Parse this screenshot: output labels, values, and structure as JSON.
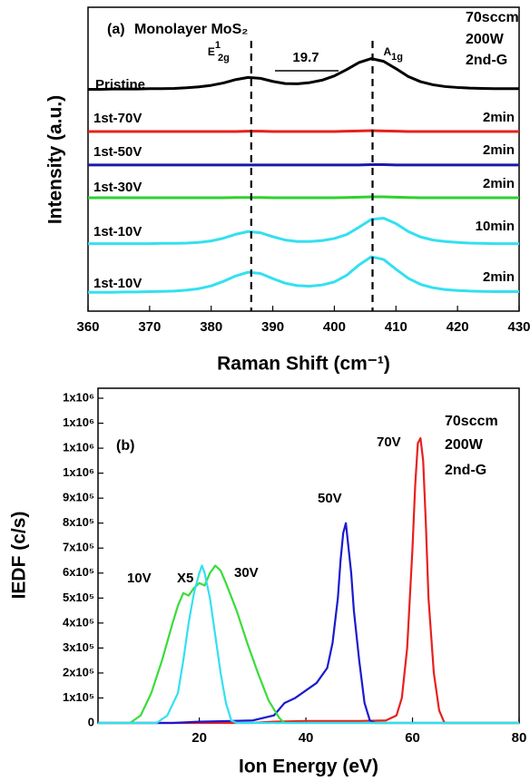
{
  "chart_data": [
    {
      "type": "line",
      "label": "(a)",
      "title": "Monolayer MoS₂",
      "x_label": "Raman Shift (cm⁻¹)",
      "y_label": "Intensity (a.u.)",
      "conditions": [
        "70sccm",
        "200W",
        "2nd-G"
      ],
      "peaks": [
        {
          "base": "E",
          "sup": "1",
          "sub": "2g",
          "x": 386.5
        },
        {
          "base": "A",
          "sub": "1g",
          "x": 406.2
        }
      ],
      "splitting": "19.7",
      "xlim": [
        360,
        430
      ],
      "xticks": [
        360,
        370,
        380,
        390,
        400,
        410,
        420,
        430
      ],
      "ylim": [
        0,
        10
      ],
      "x": [
        360,
        362,
        364,
        366,
        368,
        370,
        372,
        374,
        376,
        378,
        380,
        382,
        384,
        386,
        388,
        390,
        392,
        394,
        396,
        398,
        400,
        402,
        404,
        406,
        408,
        410,
        412,
        414,
        416,
        418,
        420,
        422,
        424,
        426,
        428,
        430
      ],
      "series": [
        {
          "name": "Pristine",
          "color": "#000000",
          "values": [
            7.3,
            7.3,
            7.31,
            7.31,
            7.31,
            7.32,
            7.32,
            7.33,
            7.35,
            7.38,
            7.43,
            7.51,
            7.62,
            7.69,
            7.66,
            7.56,
            7.49,
            7.48,
            7.52,
            7.6,
            7.74,
            7.95,
            8.18,
            8.31,
            8.22,
            7.98,
            7.72,
            7.55,
            7.45,
            7.39,
            7.36,
            7.34,
            7.33,
            7.32,
            7.32,
            7.32
          ]
        },
        {
          "name": "1st-70V",
          "color": "#e8201c",
          "duration": "2min",
          "values": [
            5.91,
            5.91,
            5.91,
            5.91,
            5.91,
            5.91,
            5.91,
            5.91,
            5.91,
            5.91,
            5.91,
            5.91,
            5.91,
            5.92,
            5.92,
            5.91,
            5.91,
            5.91,
            5.91,
            5.91,
            5.91,
            5.92,
            5.93,
            5.94,
            5.93,
            5.92,
            5.91,
            5.91,
            5.91,
            5.91,
            5.91,
            5.91,
            5.91,
            5.91,
            5.91,
            5.91
          ]
        },
        {
          "name": "1st-50V",
          "color": "#1a1aa8",
          "duration": "2min",
          "values": [
            4.81,
            4.81,
            4.81,
            4.81,
            4.81,
            4.81,
            4.81,
            4.81,
            4.81,
            4.81,
            4.81,
            4.81,
            4.81,
            4.81,
            4.81,
            4.81,
            4.81,
            4.81,
            4.81,
            4.81,
            4.81,
            4.81,
            4.81,
            4.82,
            4.82,
            4.81,
            4.81,
            4.81,
            4.81,
            4.81,
            4.81,
            4.81,
            4.81,
            4.81,
            4.81,
            4.81
          ]
        },
        {
          "name": "1st-30V",
          "color": "#2ed12e",
          "duration": "2min",
          "values": [
            3.73,
            3.73,
            3.73,
            3.73,
            3.73,
            3.73,
            3.73,
            3.73,
            3.73,
            3.73,
            3.73,
            3.73,
            3.74,
            3.74,
            3.74,
            3.73,
            3.73,
            3.73,
            3.73,
            3.73,
            3.73,
            3.74,
            3.75,
            3.76,
            3.76,
            3.75,
            3.74,
            3.73,
            3.73,
            3.73,
            3.73,
            3.73,
            3.73,
            3.73,
            3.73,
            3.73
          ]
        },
        {
          "name": "1st-10V",
          "color": "#33e0f0",
          "duration": "10min",
          "values": [
            2.22,
            2.22,
            2.22,
            2.22,
            2.22,
            2.22,
            2.23,
            2.23,
            2.24,
            2.26,
            2.31,
            2.4,
            2.53,
            2.62,
            2.58,
            2.45,
            2.34,
            2.29,
            2.29,
            2.32,
            2.39,
            2.52,
            2.76,
            3.02,
            3.06,
            2.88,
            2.62,
            2.44,
            2.34,
            2.29,
            2.26,
            2.24,
            2.23,
            2.22,
            2.22,
            2.22
          ]
        },
        {
          "name": "1st-10V",
          "color": "#33e0f0",
          "duration": "2min",
          "values": [
            0.62,
            0.62,
            0.62,
            0.63,
            0.63,
            0.64,
            0.65,
            0.66,
            0.69,
            0.74,
            0.83,
            0.98,
            1.16,
            1.28,
            1.24,
            1.07,
            0.92,
            0.84,
            0.82,
            0.86,
            0.96,
            1.18,
            1.52,
            1.79,
            1.7,
            1.38,
            1.08,
            0.88,
            0.77,
            0.71,
            0.68,
            0.66,
            0.65,
            0.64,
            0.64,
            0.64
          ]
        }
      ]
    },
    {
      "type": "line",
      "label": "(b)",
      "x_label": "Ion Energy (eV)",
      "y_label": "IEDF (c/s)",
      "conditions": [
        "70sccm",
        "200W",
        "2nd-G"
      ],
      "xlim": [
        1,
        80
      ],
      "xticks": [
        20,
        40,
        60,
        80
      ],
      "ylim": [
        0,
        1340000
      ],
      "yticks": [
        0,
        {
          "value": 100000,
          "label": "1x10⁵"
        },
        {
          "value": 200000,
          "label": "2x10⁵"
        },
        {
          "value": 300000,
          "label": "3x10⁵"
        },
        {
          "value": 400000,
          "label": "4x10⁵"
        },
        {
          "value": 500000,
          "label": "5x10⁵"
        },
        {
          "value": 600000,
          "label": "6x10⁵"
        },
        {
          "value": 700000,
          "label": "7x10⁵"
        },
        {
          "value": 800000,
          "label": "8x10⁵"
        },
        {
          "value": 900000,
          "label": "9x10⁵"
        },
        {
          "value": 1000000,
          "label": "1x10⁶"
        },
        {
          "value": 1100000,
          "label": "1x10⁶"
        },
        {
          "value": 1200000,
          "label": "1x10⁶"
        },
        {
          "value": 1300000,
          "label": "1x10⁶"
        }
      ],
      "series": [
        {
          "name": "70V",
          "color": "#e8201c",
          "x": [
            1,
            30,
            34,
            40,
            50,
            55,
            57,
            58,
            59,
            60,
            60.5,
            61,
            61.5,
            62,
            62.5,
            63,
            64,
            65,
            66,
            80
          ],
          "values": [
            0,
            0,
            5000,
            8000,
            8000,
            10000,
            30000,
            100000,
            300000,
            700000,
            950000,
            1120000,
            1140000,
            1050000,
            800000,
            500000,
            200000,
            50000,
            0,
            0
          ]
        },
        {
          "name": "50V",
          "color": "#1a1ad0",
          "x": [
            1,
            15,
            20,
            30,
            34,
            36,
            38,
            40,
            42,
            44,
            45,
            46,
            46.5,
            47,
            47.5,
            48,
            48.5,
            49,
            50,
            51,
            52,
            53,
            80
          ],
          "values": [
            0,
            0,
            5000,
            10000,
            30000,
            80000,
            100000,
            130000,
            160000,
            220000,
            320000,
            500000,
            650000,
            760000,
            800000,
            700000,
            600000,
            450000,
            250000,
            80000,
            10000,
            0,
            0
          ]
        },
        {
          "name": "30V",
          "color": "#3adc3a",
          "x": [
            1,
            7,
            9,
            11,
            13,
            15,
            16,
            17,
            18,
            19,
            20,
            21,
            22,
            23,
            24,
            25,
            27,
            29,
            31,
            33,
            35,
            36,
            80
          ],
          "values": [
            0,
            0,
            30000,
            120000,
            250000,
            400000,
            470000,
            520000,
            510000,
            540000,
            560000,
            550000,
            600000,
            630000,
            610000,
            560000,
            450000,
            320000,
            200000,
            90000,
            20000,
            0,
            0
          ]
        },
        {
          "name": "10V",
          "note": "X5",
          "color": "#33e0f0",
          "x": [
            1,
            12,
            14,
            16,
            17,
            18,
            19,
            20,
            20.5,
            21,
            22,
            23,
            24,
            25,
            26,
            27,
            80
          ],
          "values": [
            0,
            0,
            30000,
            120000,
            250000,
            400000,
            520000,
            600000,
            630000,
            600000,
            500000,
            350000,
            200000,
            80000,
            10000,
            0,
            0
          ]
        }
      ]
    }
  ]
}
